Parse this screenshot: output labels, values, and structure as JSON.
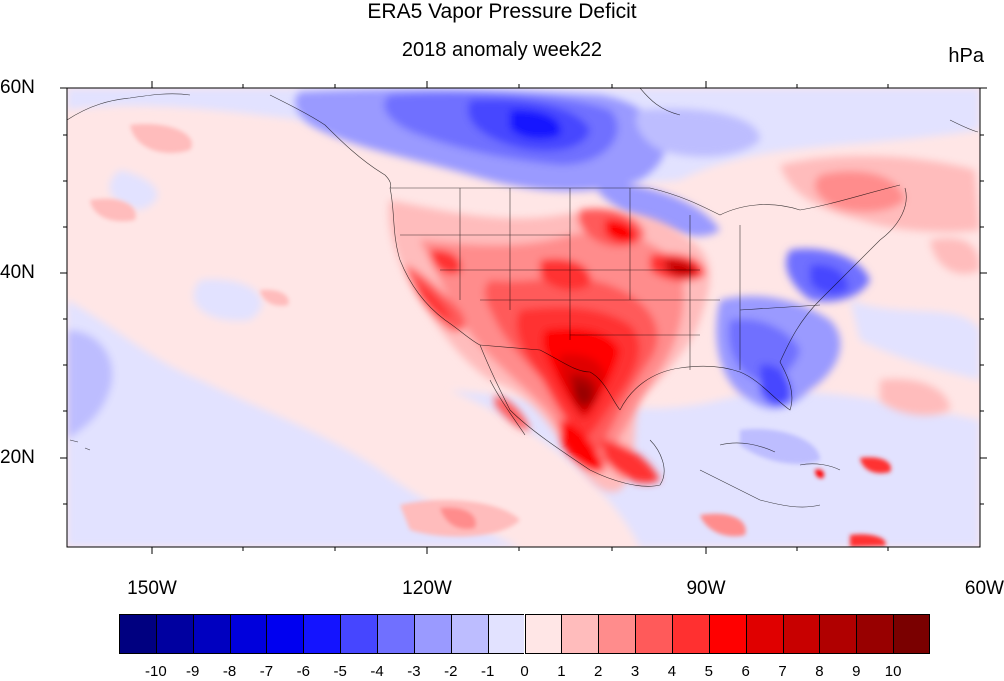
{
  "title": "ERA5 Vapor Pressure Deficit",
  "subtitle": "2018 anomaly week22",
  "units": "hPa",
  "lat_ticks": [
    "60N",
    "40N",
    "20N"
  ],
  "lon_ticks": [
    "150W",
    "120W",
    "90W",
    "60W"
  ],
  "colorbar": {
    "labels": [
      "-10",
      "-9",
      "-8",
      "-7",
      "-6",
      "-5",
      "-4",
      "-3",
      "-2",
      "-1",
      "0",
      "1",
      "2",
      "3",
      "4",
      "5",
      "6",
      "7",
      "8",
      "9",
      "10"
    ],
    "colors": [
      "#000080",
      "#0000a0",
      "#0000c0",
      "#0000dc",
      "#0000f0",
      "#1414ff",
      "#4646ff",
      "#7070ff",
      "#9a9aff",
      "#bdbdff",
      "#e2e2ff",
      "#ffe6e6",
      "#ffbcbc",
      "#ff8c8c",
      "#ff5a5a",
      "#ff3030",
      "#ff0000",
      "#e00000",
      "#c80000",
      "#b00000",
      "#980000",
      "#7a0000"
    ]
  },
  "domain": {
    "lon_range": [
      -160,
      -60
    ],
    "lat_range": [
      10,
      60
    ]
  }
}
